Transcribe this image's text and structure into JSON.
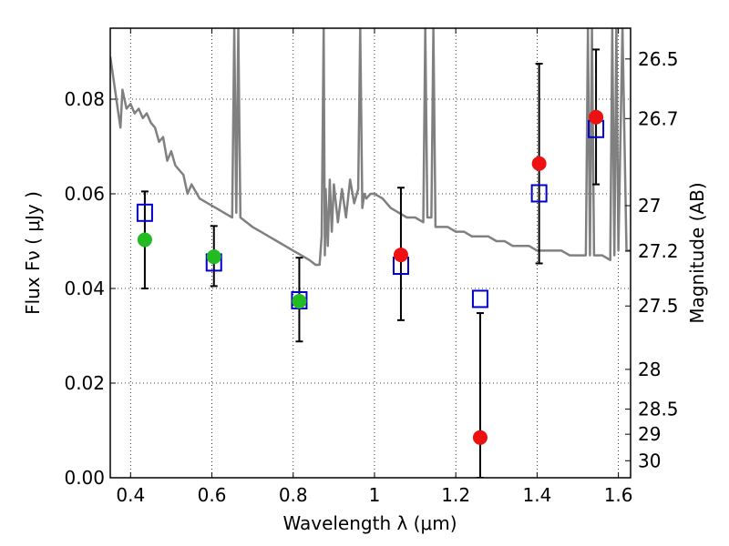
{
  "chart_data": {
    "type": "scatter",
    "title": "",
    "xlabel": "Wavelength  λ (μm)",
    "ylabel_left": "Flux  Fν  ( μJy )",
    "ylabel_right": "Magnitude (AB)",
    "xlim": [
      0.35,
      1.63
    ],
    "ylim": [
      0.0,
      0.095
    ],
    "grid": true,
    "x_ticks": [
      0.4,
      0.6,
      0.8,
      1.0,
      1.2,
      1.4,
      1.6
    ],
    "x_tick_labels": [
      "0.4",
      "0.6",
      "0.8",
      "1",
      "1.2",
      "1.4",
      "1.6"
    ],
    "y_ticks": [
      0.0,
      0.02,
      0.04,
      0.06,
      0.08
    ],
    "y_tick_labels": [
      "0.00",
      "0.02",
      "0.04",
      "0.06",
      "0.08"
    ],
    "right_ticks": [
      {
        "flux": 0.0885,
        "label": "26.5"
      },
      {
        "flux": 0.0759,
        "label": "26.7"
      },
      {
        "flux": 0.0575,
        "label": "27"
      },
      {
        "flux": 0.0479,
        "label": "27.2"
      },
      {
        "flux": 0.0363,
        "label": "27.5"
      },
      {
        "flux": 0.0229,
        "label": "28"
      },
      {
        "flux": 0.0145,
        "label": "28.5"
      },
      {
        "flux": 0.0092,
        "label": "29"
      },
      {
        "flux": 0.0036,
        "label": "30"
      }
    ],
    "series": [
      {
        "type": "line",
        "color": "#808080",
        "x": [
          0.35,
          0.36,
          0.37,
          0.375,
          0.38,
          0.39,
          0.4,
          0.41,
          0.42,
          0.43,
          0.44,
          0.45,
          0.46,
          0.47,
          0.48,
          0.49,
          0.5,
          0.51,
          0.52,
          0.53,
          0.54,
          0.55,
          0.57,
          0.59,
          0.61,
          0.63,
          0.65,
          0.655,
          0.66,
          0.665,
          0.67,
          0.7,
          0.72,
          0.74,
          0.76,
          0.78,
          0.8,
          0.82,
          0.84,
          0.855,
          0.865,
          0.87,
          0.875,
          0.878,
          0.88,
          0.885,
          0.89,
          0.895,
          0.9,
          0.91,
          0.92,
          0.93,
          0.94,
          0.95,
          0.96,
          0.965,
          0.97,
          0.975,
          0.98,
          0.99,
          1.0,
          1.02,
          1.04,
          1.06,
          1.08,
          1.1,
          1.12,
          1.125,
          1.13,
          1.14,
          1.145,
          1.15,
          1.155,
          1.16,
          1.18,
          1.2,
          1.22,
          1.24,
          1.26,
          1.28,
          1.3,
          1.32,
          1.34,
          1.36,
          1.38,
          1.4,
          1.42,
          1.44,
          1.46,
          1.48,
          1.5,
          1.52,
          1.525,
          1.53,
          1.535,
          1.54,
          1.56,
          1.58,
          1.585,
          1.59,
          1.595,
          1.6,
          1.61,
          1.62,
          1.63
        ],
        "y": [
          0.089,
          0.083,
          0.077,
          0.074,
          0.082,
          0.078,
          0.079,
          0.077,
          0.078,
          0.076,
          0.077,
          0.075,
          0.074,
          0.071,
          0.072,
          0.067,
          0.069,
          0.066,
          0.065,
          0.064,
          0.06,
          0.062,
          0.059,
          0.058,
          0.057,
          0.056,
          0.055,
          0.095,
          0.056,
          0.095,
          0.055,
          0.053,
          0.052,
          0.051,
          0.05,
          0.049,
          0.048,
          0.047,
          0.046,
          0.045,
          0.045,
          0.051,
          0.095,
          0.047,
          0.061,
          0.049,
          0.063,
          0.052,
          0.062,
          0.054,
          0.061,
          0.055,
          0.063,
          0.058,
          0.061,
          0.095,
          0.057,
          0.06,
          0.059,
          0.06,
          0.06,
          0.059,
          0.057,
          0.056,
          0.055,
          0.055,
          0.054,
          0.095,
          0.055,
          0.055,
          0.095,
          0.053,
          0.053,
          0.053,
          0.053,
          0.052,
          0.052,
          0.051,
          0.051,
          0.051,
          0.05,
          0.05,
          0.049,
          0.049,
          0.049,
          0.048,
          0.048,
          0.048,
          0.048,
          0.047,
          0.047,
          0.047,
          0.095,
          0.047,
          0.095,
          0.047,
          0.047,
          0.046,
          0.095,
          0.047,
          0.095,
          0.048,
          0.095,
          0.048,
          0.048
        ]
      },
      {
        "type": "errorbar",
        "color": "#000000",
        "points": [
          {
            "x": 0.435,
            "low": 0.04,
            "high": 0.0605
          },
          {
            "x": 0.605,
            "low": 0.0405,
            "high": 0.0532
          },
          {
            "x": 0.815,
            "low": 0.0288,
            "high": 0.0465
          },
          {
            "x": 1.065,
            "low": 0.0333,
            "high": 0.0613
          },
          {
            "x": 1.26,
            "low": 0.0,
            "high": 0.0348
          },
          {
            "x": 1.405,
            "low": 0.0453,
            "high": 0.0875
          },
          {
            "x": 1.545,
            "low": 0.062,
            "high": 0.0905
          }
        ]
      },
      {
        "type": "scatter",
        "marker": "square-open",
        "color": "#0000cc",
        "x": [
          0.435,
          0.605,
          0.815,
          1.065,
          1.26,
          1.405,
          1.545
        ],
        "y": [
          0.056,
          0.0455,
          0.0375,
          0.0448,
          0.0378,
          0.0601,
          0.0737
        ]
      },
      {
        "type": "scatter",
        "marker": "circle",
        "color": "#22bb22",
        "x": [
          0.435,
          0.605,
          0.815
        ],
        "y": [
          0.0503,
          0.0467,
          0.0373
        ]
      },
      {
        "type": "scatter",
        "marker": "circle",
        "color": "#ee1111",
        "x": [
          1.065,
          1.26,
          1.405,
          1.545
        ],
        "y": [
          0.0471,
          0.0085,
          0.0664,
          0.0762
        ]
      }
    ]
  }
}
